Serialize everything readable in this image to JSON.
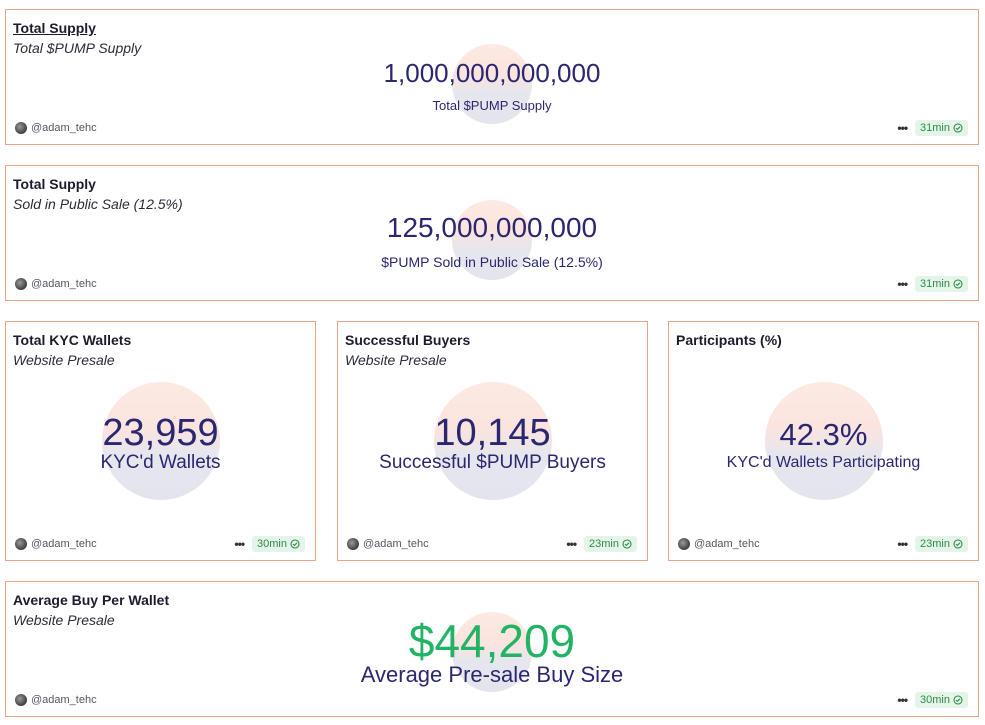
{
  "cards": [
    {
      "title": "Total Supply",
      "subtitle": "Total $PUMP Supply",
      "value": "1,000,000,000,000",
      "label": "Total $PUMP Supply",
      "author": "@adam_tehc",
      "age": "31min"
    },
    {
      "title": "Total Supply",
      "subtitle": "Sold in Public Sale (12.5%)",
      "value": "125,000,000,000",
      "label": "$PUMP Sold in Public Sale (12.5%)",
      "author": "@adam_tehc",
      "age": "31min"
    },
    {
      "title": "Total KYC Wallets",
      "subtitle": "Website Presale",
      "value": "23,959",
      "label": "KYC'd Wallets",
      "author": "@adam_tehc",
      "age": "30min"
    },
    {
      "title": "Successful Buyers",
      "subtitle": "Website Presale",
      "value": "10,145",
      "label": "Successful $PUMP Buyers",
      "author": "@adam_tehc",
      "age": "23min"
    },
    {
      "title": "Participants (%)",
      "subtitle": "",
      "value": "42.3%",
      "label": "KYC'd Wallets Participating",
      "author": "@adam_tehc",
      "age": "23min"
    },
    {
      "title": "Average Buy Per Wallet",
      "subtitle": "Website Presale",
      "value": "$44,209",
      "label": "Average Pre-sale Buy Size",
      "author": "@adam_tehc",
      "age": "30min"
    }
  ],
  "colors": {
    "border": "#e9a48c",
    "value_primary": "#2a2770",
    "value_positive": "#22b364",
    "badge_bg": "#e4f4e8",
    "badge_text": "#2e8b47"
  }
}
